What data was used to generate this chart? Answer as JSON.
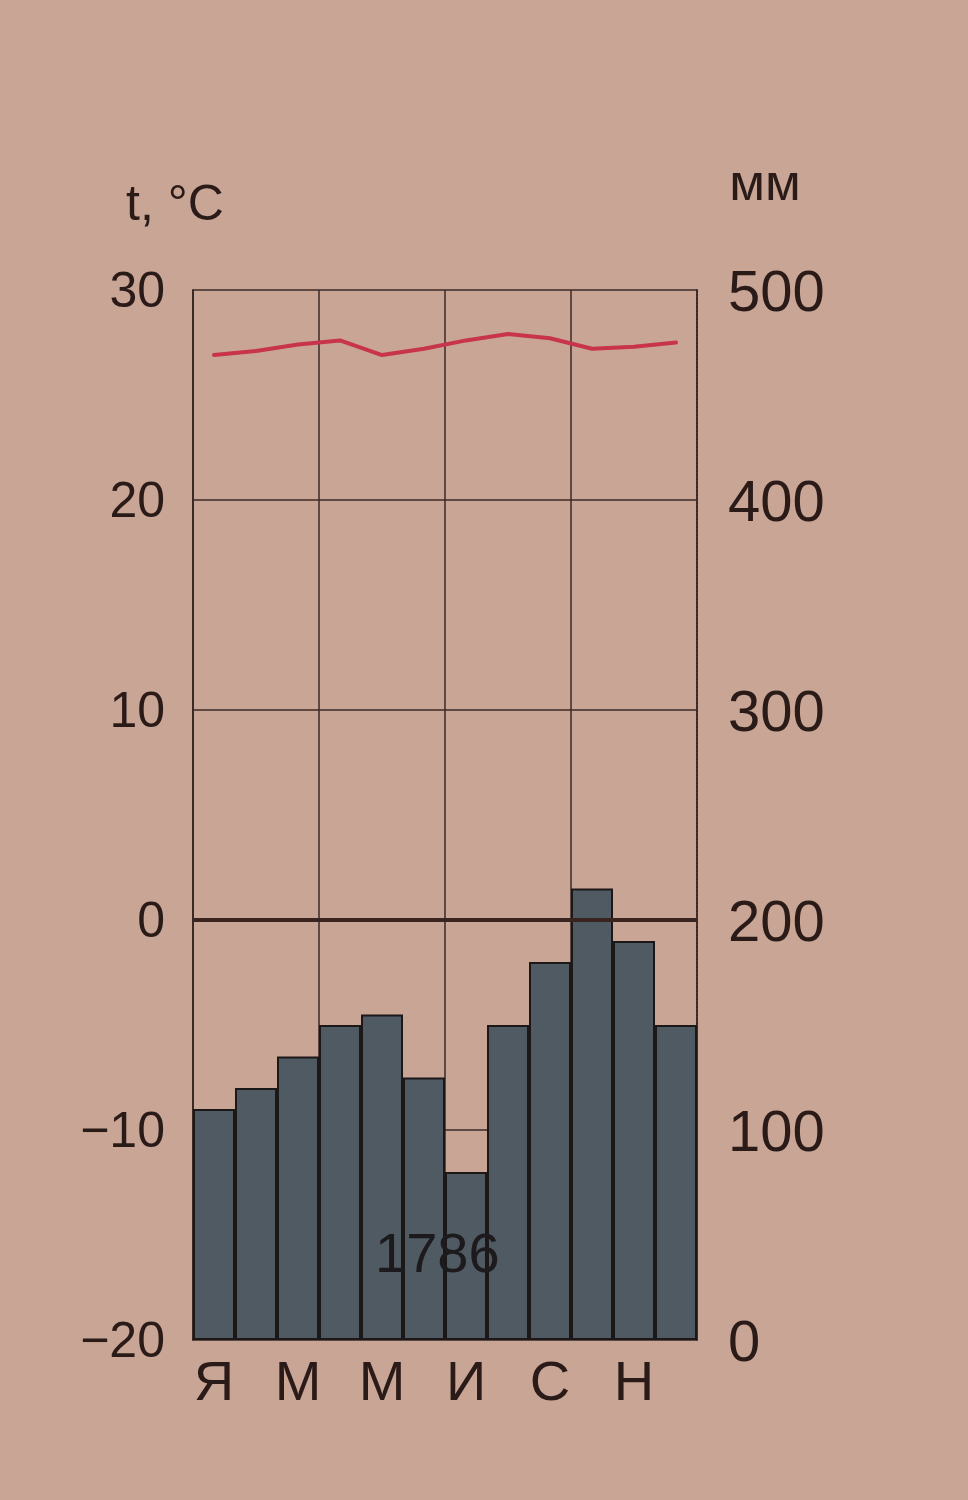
{
  "chart_data": {
    "type": "bar",
    "categories": [
      "Я",
      null,
      "М",
      null,
      "М",
      null,
      "И",
      null,
      "С",
      null,
      "Н",
      null
    ],
    "ylabel": "t, °C",
    "y2label": "мм",
    "series": [
      {
        "axis": "y2",
        "color": "#4f5a62",
        "values": [
          110,
          120,
          135,
          150,
          155,
          125,
          80,
          150,
          180,
          215,
          190,
          150
        ]
      },
      {
        "type": "line",
        "color": "#c8344c",
        "values": [
          26.9,
          27.1,
          27.4,
          27.6,
          26.9,
          27.2,
          27.6,
          27.9,
          27.7,
          27.2,
          27.3,
          27.5
        ]
      }
    ],
    "ylim": [
      -20,
      30
    ],
    "yticks": [
      {
        "value": -20,
        "label": "−20"
      },
      {
        "value": -10,
        "label": "−10"
      },
      0,
      10,
      20,
      30
    ],
    "y2lim": [
      0,
      500
    ],
    "y2ticks": [
      0,
      100,
      200,
      300,
      400,
      500
    ],
    "grid": true,
    "ref_lines": [
      {
        "axis": "y",
        "value": 0,
        "color": "#3a2420"
      }
    ],
    "annotations": [
      "1786"
    ]
  }
}
